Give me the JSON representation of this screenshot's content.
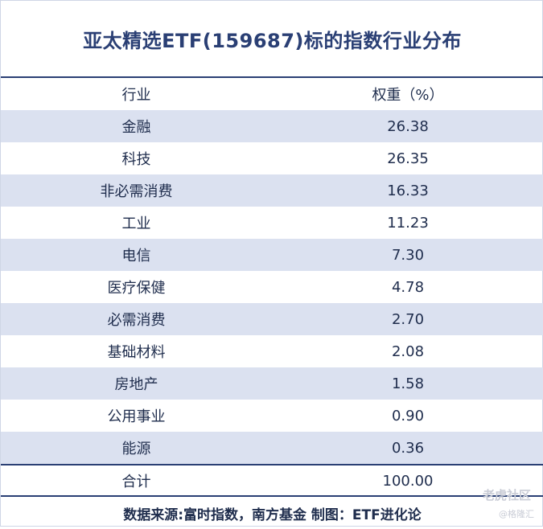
{
  "title": "亚太精选ETF(159687)标的指数行业分布",
  "chart_data": {
    "type": "table",
    "columns": [
      "行业",
      "权重（%）"
    ],
    "rows": [
      {
        "industry": "金融",
        "weight": "26.38"
      },
      {
        "industry": "科技",
        "weight": "26.35"
      },
      {
        "industry": "非必需消费",
        "weight": "16.33"
      },
      {
        "industry": "工业",
        "weight": "11.23"
      },
      {
        "industry": "电信",
        "weight": "7.30"
      },
      {
        "industry": "医疗保健",
        "weight": "4.78"
      },
      {
        "industry": "必需消费",
        "weight": "2.70"
      },
      {
        "industry": "基础材料",
        "weight": "2.08"
      },
      {
        "industry": "房地产",
        "weight": "1.58"
      },
      {
        "industry": "公用事业",
        "weight": "0.90"
      },
      {
        "industry": "能源",
        "weight": "0.36"
      }
    ],
    "total": {
      "label": "合计",
      "weight": "100.00"
    }
  },
  "footer": "数据来源:富时指数，南方基金  制图：ETF进化论",
  "watermark": {
    "main": "老虎社区",
    "sub": "@格隆汇"
  }
}
